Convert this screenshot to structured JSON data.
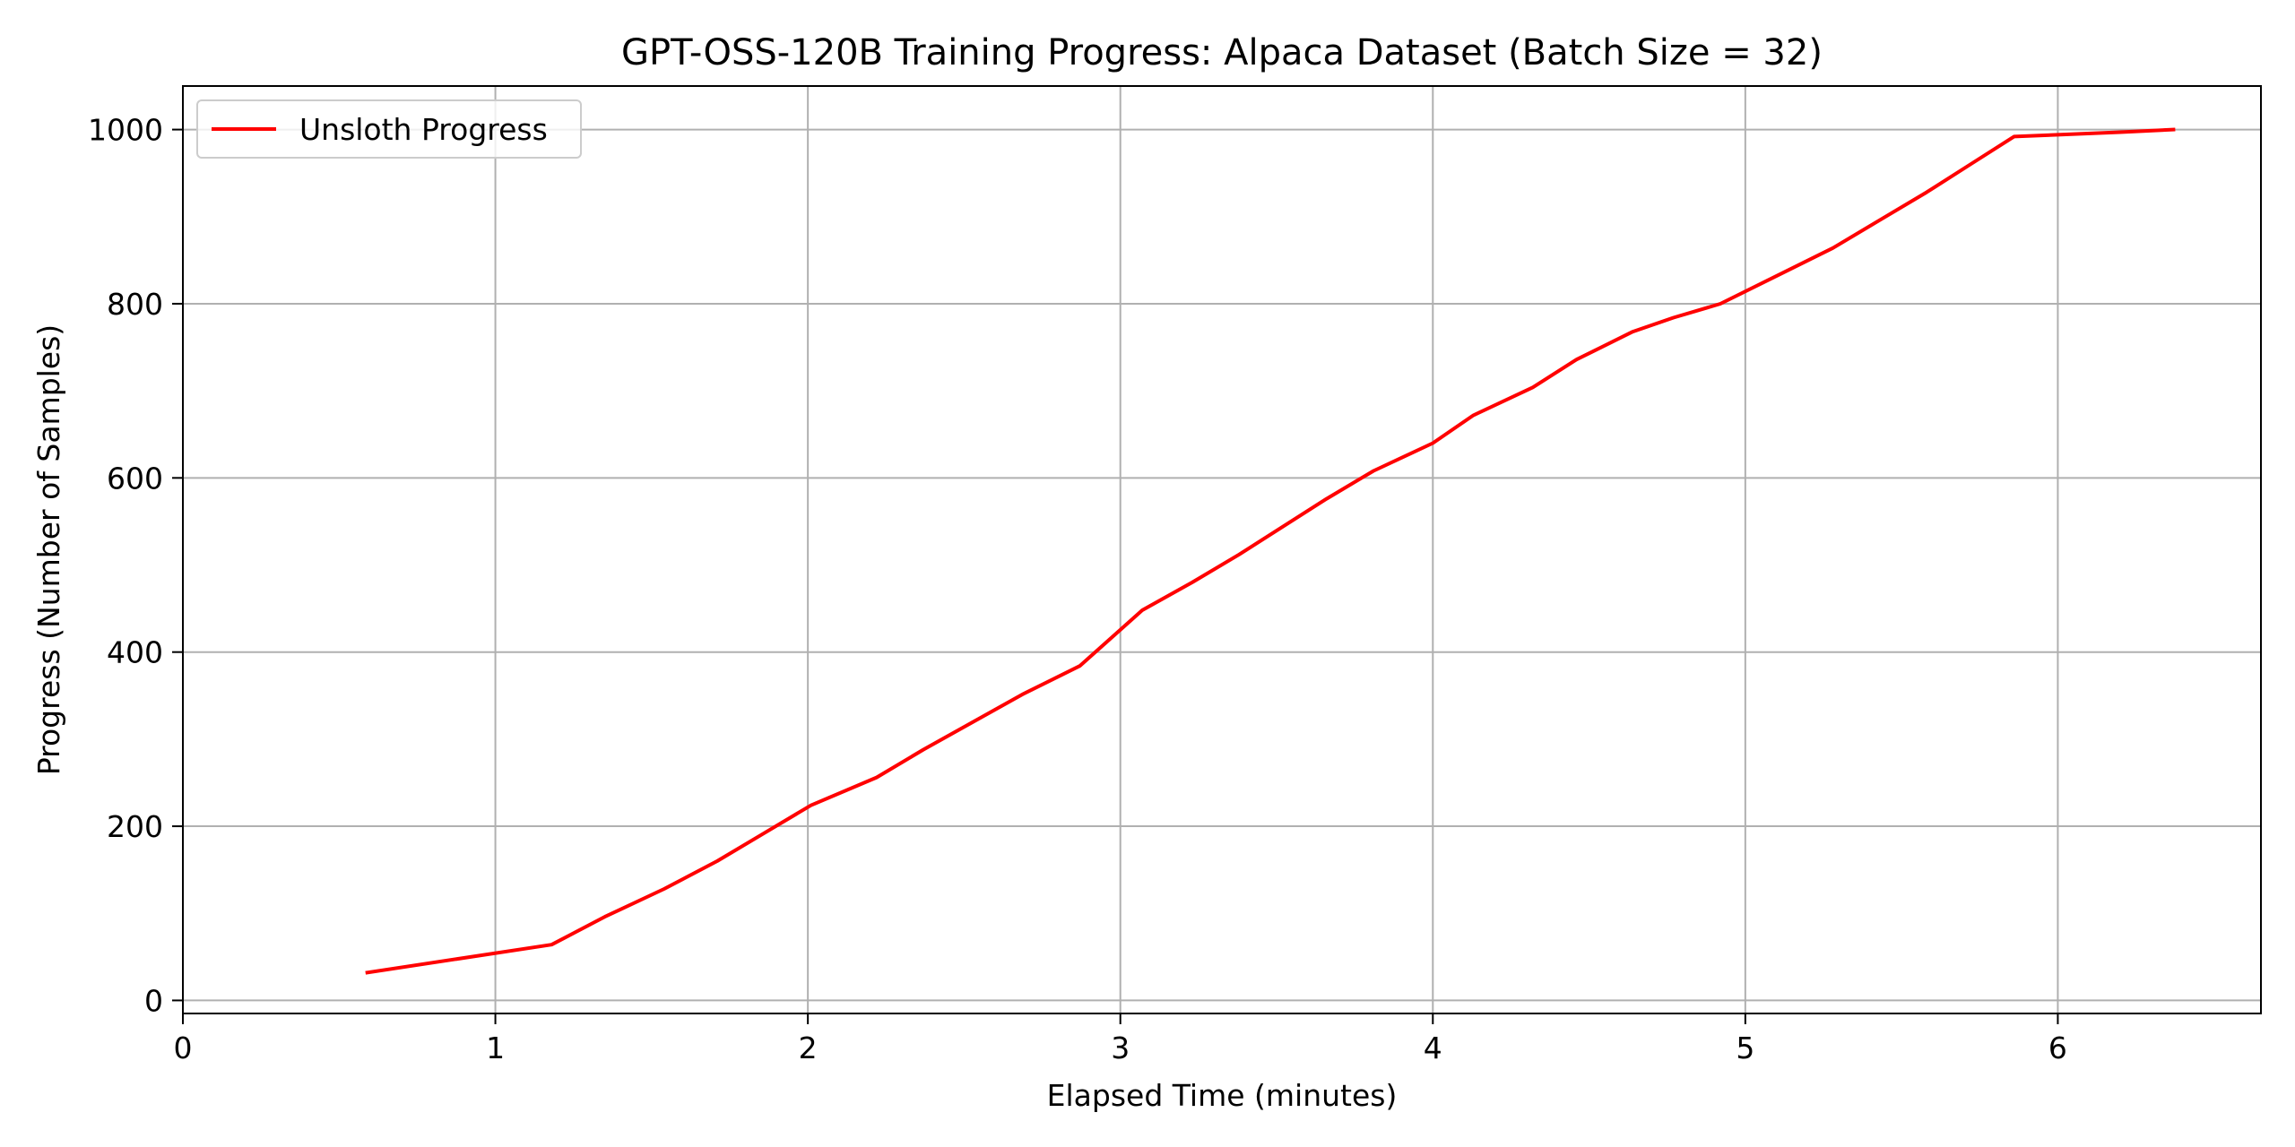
{
  "chart_data": {
    "type": "line",
    "title": "GPT-OSS-120B Training Progress: Alpaca Dataset (Batch Size = 32)",
    "xlabel": "Elapsed Time (minutes)",
    "ylabel": "Progress (Number of Samples)",
    "xlim": [
      0,
      6.65
    ],
    "ylim": [
      -15,
      1050
    ],
    "xticks": [
      0,
      1,
      2,
      3,
      4,
      5,
      6
    ],
    "yticks": [
      0,
      200,
      400,
      600,
      800,
      1000
    ],
    "grid": true,
    "legend_position": "top-left",
    "series": [
      {
        "name": "Unsloth Progress",
        "color": "#ff0000",
        "x": [
          0.59,
          1.18,
          1.35,
          1.54,
          1.71,
          1.86,
          2.01,
          2.22,
          2.37,
          2.53,
          2.69,
          2.87,
          3.07,
          3.23,
          3.38,
          3.52,
          3.66,
          3.81,
          4.0,
          4.13,
          4.32,
          4.46,
          4.64,
          4.77,
          4.92,
          5.1,
          5.28,
          5.43,
          5.58,
          5.72,
          5.86,
          6.0,
          6.2,
          6.37
        ],
        "y": [
          32,
          64,
          96,
          128,
          160,
          192,
          224,
          256,
          288,
          320,
          352,
          384,
          448,
          480,
          512,
          544,
          576,
          608,
          640,
          672,
          704,
          736,
          768,
          784,
          800,
          832,
          864,
          896,
          928,
          960,
          992,
          994,
          997,
          1000
        ]
      }
    ]
  }
}
